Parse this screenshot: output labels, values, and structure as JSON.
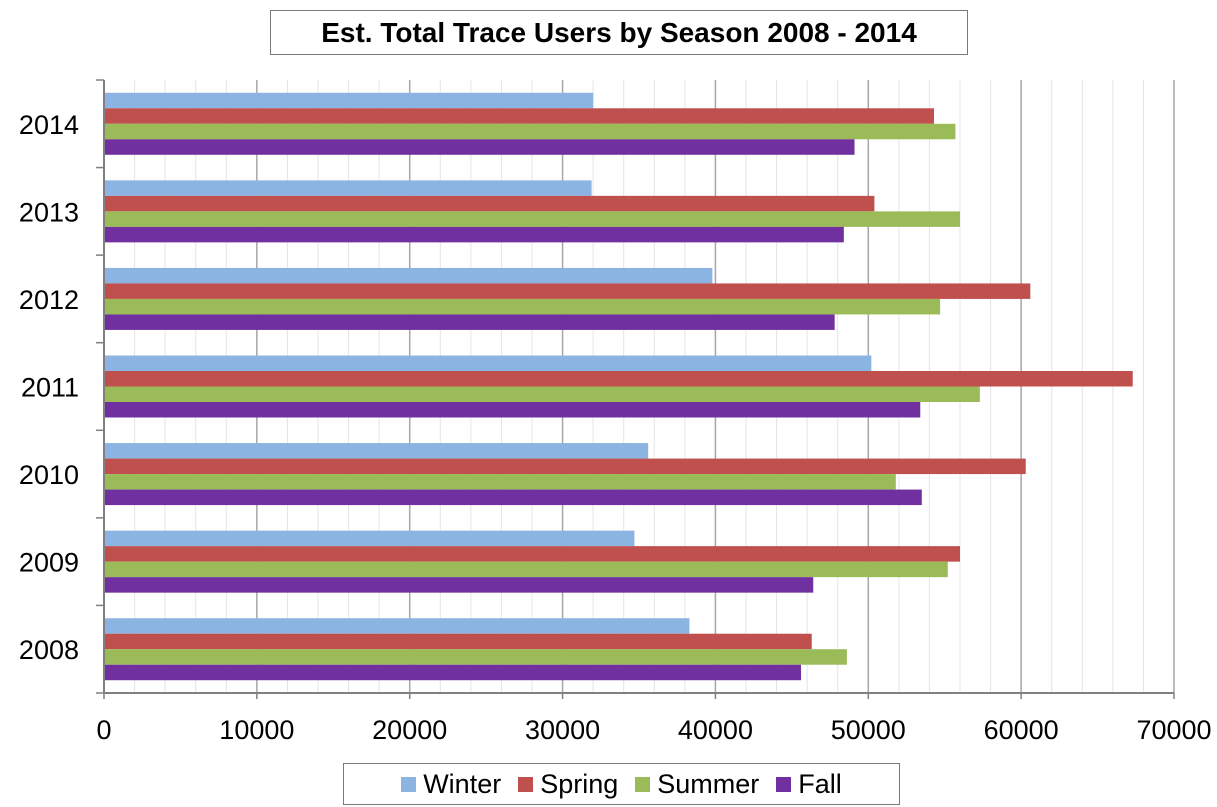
{
  "chart_data": {
    "type": "bar",
    "orientation": "horizontal",
    "title": "Est. Total Trace Users by Season 2008 - 2014",
    "xlabel": "",
    "ylabel": "",
    "categories": [
      "2008",
      "2009",
      "2010",
      "2011",
      "2012",
      "2013",
      "2014"
    ],
    "series": [
      {
        "name": "Winter",
        "color": "#8cb4e2",
        "values": [
          38300,
          34700,
          35600,
          50200,
          39800,
          31900,
          32000
        ]
      },
      {
        "name": "Spring",
        "color": "#c0504d",
        "values": [
          46300,
          56000,
          60300,
          67300,
          60600,
          50400,
          54300
        ]
      },
      {
        "name": "Summer",
        "color": "#9bbb59",
        "values": [
          48600,
          55200,
          51800,
          57300,
          54700,
          56000,
          55700
        ]
      },
      {
        "name": "Fall",
        "color": "#7030a0",
        "values": [
          45600,
          46400,
          53500,
          53400,
          47800,
          48400,
          49100
        ]
      }
    ],
    "xlim": [
      0,
      70000
    ],
    "x_ticks": [
      "0",
      "10000",
      "20000",
      "30000",
      "40000",
      "50000",
      "60000",
      "70000"
    ],
    "grid": "vertical major and minor",
    "legend_position": "bottom"
  }
}
